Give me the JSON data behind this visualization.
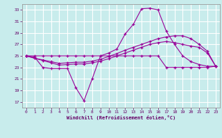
{
  "xlabel": "Windchill (Refroidissement éolien,°C)",
  "bg_color": "#c8ecec",
  "grid_color": "#ffffff",
  "line_color": "#990099",
  "xlim": [
    -0.5,
    23.5
  ],
  "ylim": [
    16,
    34
  ],
  "yticks": [
    17,
    19,
    21,
    23,
    25,
    27,
    29,
    31,
    33
  ],
  "xticks": [
    0,
    1,
    2,
    3,
    4,
    5,
    6,
    7,
    8,
    9,
    10,
    11,
    12,
    13,
    14,
    15,
    16,
    17,
    18,
    19,
    20,
    21,
    22,
    23
  ],
  "s1_x": [
    0,
    1,
    2,
    3,
    4,
    5,
    6,
    7,
    8,
    9,
    10,
    11,
    12,
    13,
    14,
    15,
    16,
    17,
    18,
    19,
    20,
    21,
    22,
    23
  ],
  "s1_y": [
    25.0,
    24.8,
    23.0,
    22.8,
    22.8,
    22.8,
    19.5,
    17.2,
    21.0,
    25.0,
    25.5,
    26.2,
    28.8,
    30.5,
    33.2,
    33.3,
    33.0,
    29.3,
    27.0,
    25.0,
    24.0,
    23.5,
    23.2,
    23.2
  ],
  "s2_x": [
    0,
    1,
    2,
    3,
    4,
    5,
    6,
    7,
    8,
    9,
    10,
    11,
    12,
    13,
    14,
    15,
    16,
    17,
    18,
    19,
    20,
    21,
    22,
    23
  ],
  "s2_y": [
    25.0,
    25.0,
    25.0,
    25.0,
    25.0,
    25.0,
    25.0,
    25.0,
    25.0,
    25.0,
    25.0,
    25.0,
    25.0,
    25.0,
    25.0,
    25.0,
    25.0,
    23.0,
    23.0,
    23.0,
    23.0,
    23.0,
    23.0,
    23.2
  ],
  "s3_x": [
    0,
    1,
    2,
    3,
    4,
    5,
    6,
    7,
    8,
    9,
    10,
    11,
    12,
    13,
    14,
    15,
    16,
    17,
    18,
    19,
    20,
    21,
    22,
    23
  ],
  "s3_y": [
    25.0,
    24.6,
    24.2,
    23.8,
    23.4,
    23.5,
    23.6,
    23.6,
    23.8,
    24.1,
    24.5,
    25.0,
    25.5,
    26.0,
    26.5,
    27.0,
    27.3,
    27.5,
    27.3,
    27.0,
    26.7,
    26.5,
    25.5,
    23.2
  ],
  "s4_x": [
    0,
    1,
    2,
    3,
    4,
    5,
    6,
    7,
    8,
    9,
    10,
    11,
    12,
    13,
    14,
    15,
    16,
    17,
    18,
    19,
    20,
    21,
    22,
    23
  ],
  "s4_y": [
    25.0,
    24.6,
    24.3,
    24.0,
    23.7,
    23.8,
    23.9,
    23.9,
    24.1,
    24.4,
    24.9,
    25.4,
    26.0,
    26.5,
    27.0,
    27.5,
    28.0,
    28.3,
    28.5,
    28.5,
    28.0,
    27.0,
    25.8,
    23.2
  ]
}
